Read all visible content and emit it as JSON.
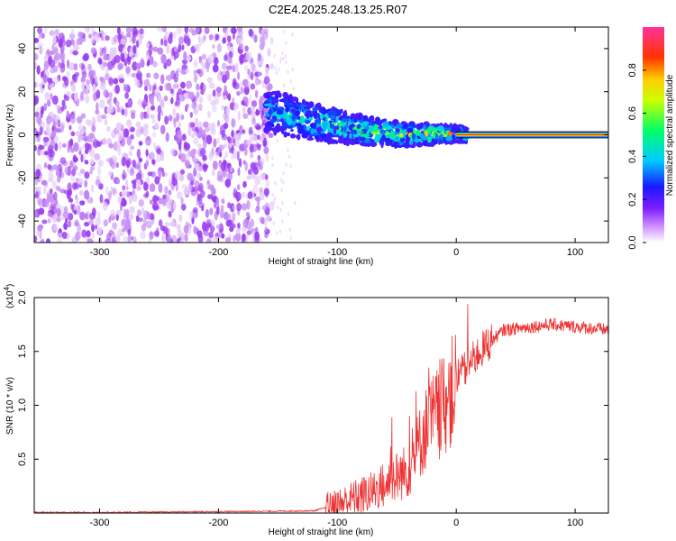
{
  "title": "C2E4.2025.248.13.25.R07",
  "chart_data": [
    {
      "type": "heatmap",
      "xlabel": "Height of straight line (km)",
      "ylabel": "Frequency (Hz)",
      "xlim": [
        -355,
        128
      ],
      "ylim": [
        -50,
        50
      ],
      "xticks": [
        -300,
        -200,
        -100,
        0,
        100
      ],
      "xtick_labels": [
        "-300",
        "-200",
        "-100",
        "0",
        "100"
      ],
      "yticks": [
        -40,
        -20,
        0,
        20,
        40
      ],
      "ytick_labels": [
        "-40",
        "-20",
        "0",
        "20",
        "40"
      ],
      "colorbar": {
        "label": "Normalized spectral amplitude",
        "range": [
          0,
          1
        ],
        "ticks": [
          0.0,
          0.2,
          0.4,
          0.6,
          0.8
        ],
        "tick_labels": [
          "0.0",
          "0.2",
          "0.4",
          "0.6",
          "0.8"
        ]
      },
      "features": {
        "noise_region_x": [
          -355,
          -155
        ],
        "signal_track": [
          {
            "x": -155,
            "y": 11
          },
          {
            "x": -120,
            "y": 6
          },
          {
            "x": -80,
            "y": 2
          },
          {
            "x": -40,
            "y": 0
          },
          {
            "x": 0,
            "y": 0.5
          },
          {
            "x": 10,
            "y": 0
          },
          {
            "x": 128,
            "y": 0
          }
        ],
        "carrier_line_x": [
          0,
          128
        ],
        "carrier_freq": 0
      }
    },
    {
      "type": "line",
      "xlabel": "Height of straight line (km)",
      "ylabel": "SNR (10 * v/v)",
      "exponent_label": "(x10",
      "exponent_value": "4",
      "exponent_close": ")",
      "xlim": [
        -355,
        128
      ],
      "ylim": [
        0,
        2.0
      ],
      "xticks": [
        -300,
        -200,
        -100,
        0,
        100
      ],
      "xtick_labels": [
        "-300",
        "-200",
        "-100",
        "0",
        "100"
      ],
      "yticks": [
        0.5,
        1.0,
        1.5,
        2.0
      ],
      "ytick_labels": [
        "0.5",
        "1.0",
        "1.5",
        "2.0"
      ],
      "color": "#ee3333",
      "series_profile": [
        {
          "x": -355,
          "y": 0.0
        },
        {
          "x": -120,
          "y": 0.02
        },
        {
          "x": -100,
          "y": 0.08
        },
        {
          "x": -70,
          "y": 0.2
        },
        {
          "x": -40,
          "y": 0.4
        },
        {
          "x": -25,
          "y": 0.8
        },
        {
          "x": -10,
          "y": 1.0
        },
        {
          "x": 5,
          "y": 1.3
        },
        {
          "x": 20,
          "y": 1.5
        },
        {
          "x": 40,
          "y": 1.7
        },
        {
          "x": 80,
          "y": 1.75
        },
        {
          "x": 128,
          "y": 1.7
        }
      ]
    }
  ]
}
